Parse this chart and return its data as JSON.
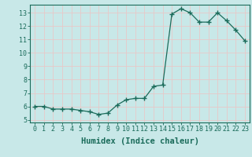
{
  "x": [
    0,
    1,
    2,
    3,
    4,
    5,
    6,
    7,
    8,
    9,
    10,
    11,
    12,
    13,
    14,
    15,
    16,
    17,
    18,
    19,
    20,
    21,
    22,
    23
  ],
  "y": [
    6.0,
    6.0,
    5.8,
    5.8,
    5.8,
    5.7,
    5.6,
    5.4,
    5.5,
    6.1,
    6.5,
    6.6,
    6.6,
    7.5,
    7.6,
    12.9,
    13.3,
    13.0,
    12.3,
    12.3,
    13.0,
    12.4,
    11.7,
    10.9
  ],
  "line_color": "#1a6b5a",
  "marker": "+",
  "bg_color": "#c8e8e8",
  "grid_color": "#e8c8c8",
  "xlabel": "Humidex (Indice chaleur)",
  "ylim": [
    4.8,
    13.6
  ],
  "xlim": [
    -0.5,
    23.5
  ],
  "yticks": [
    5,
    6,
    7,
    8,
    9,
    10,
    11,
    12,
    13
  ],
  "xticks": [
    0,
    1,
    2,
    3,
    4,
    5,
    6,
    7,
    8,
    9,
    10,
    11,
    12,
    13,
    14,
    15,
    16,
    17,
    18,
    19,
    20,
    21,
    22,
    23
  ],
  "tick_fontsize": 6,
  "label_fontsize": 7.5
}
